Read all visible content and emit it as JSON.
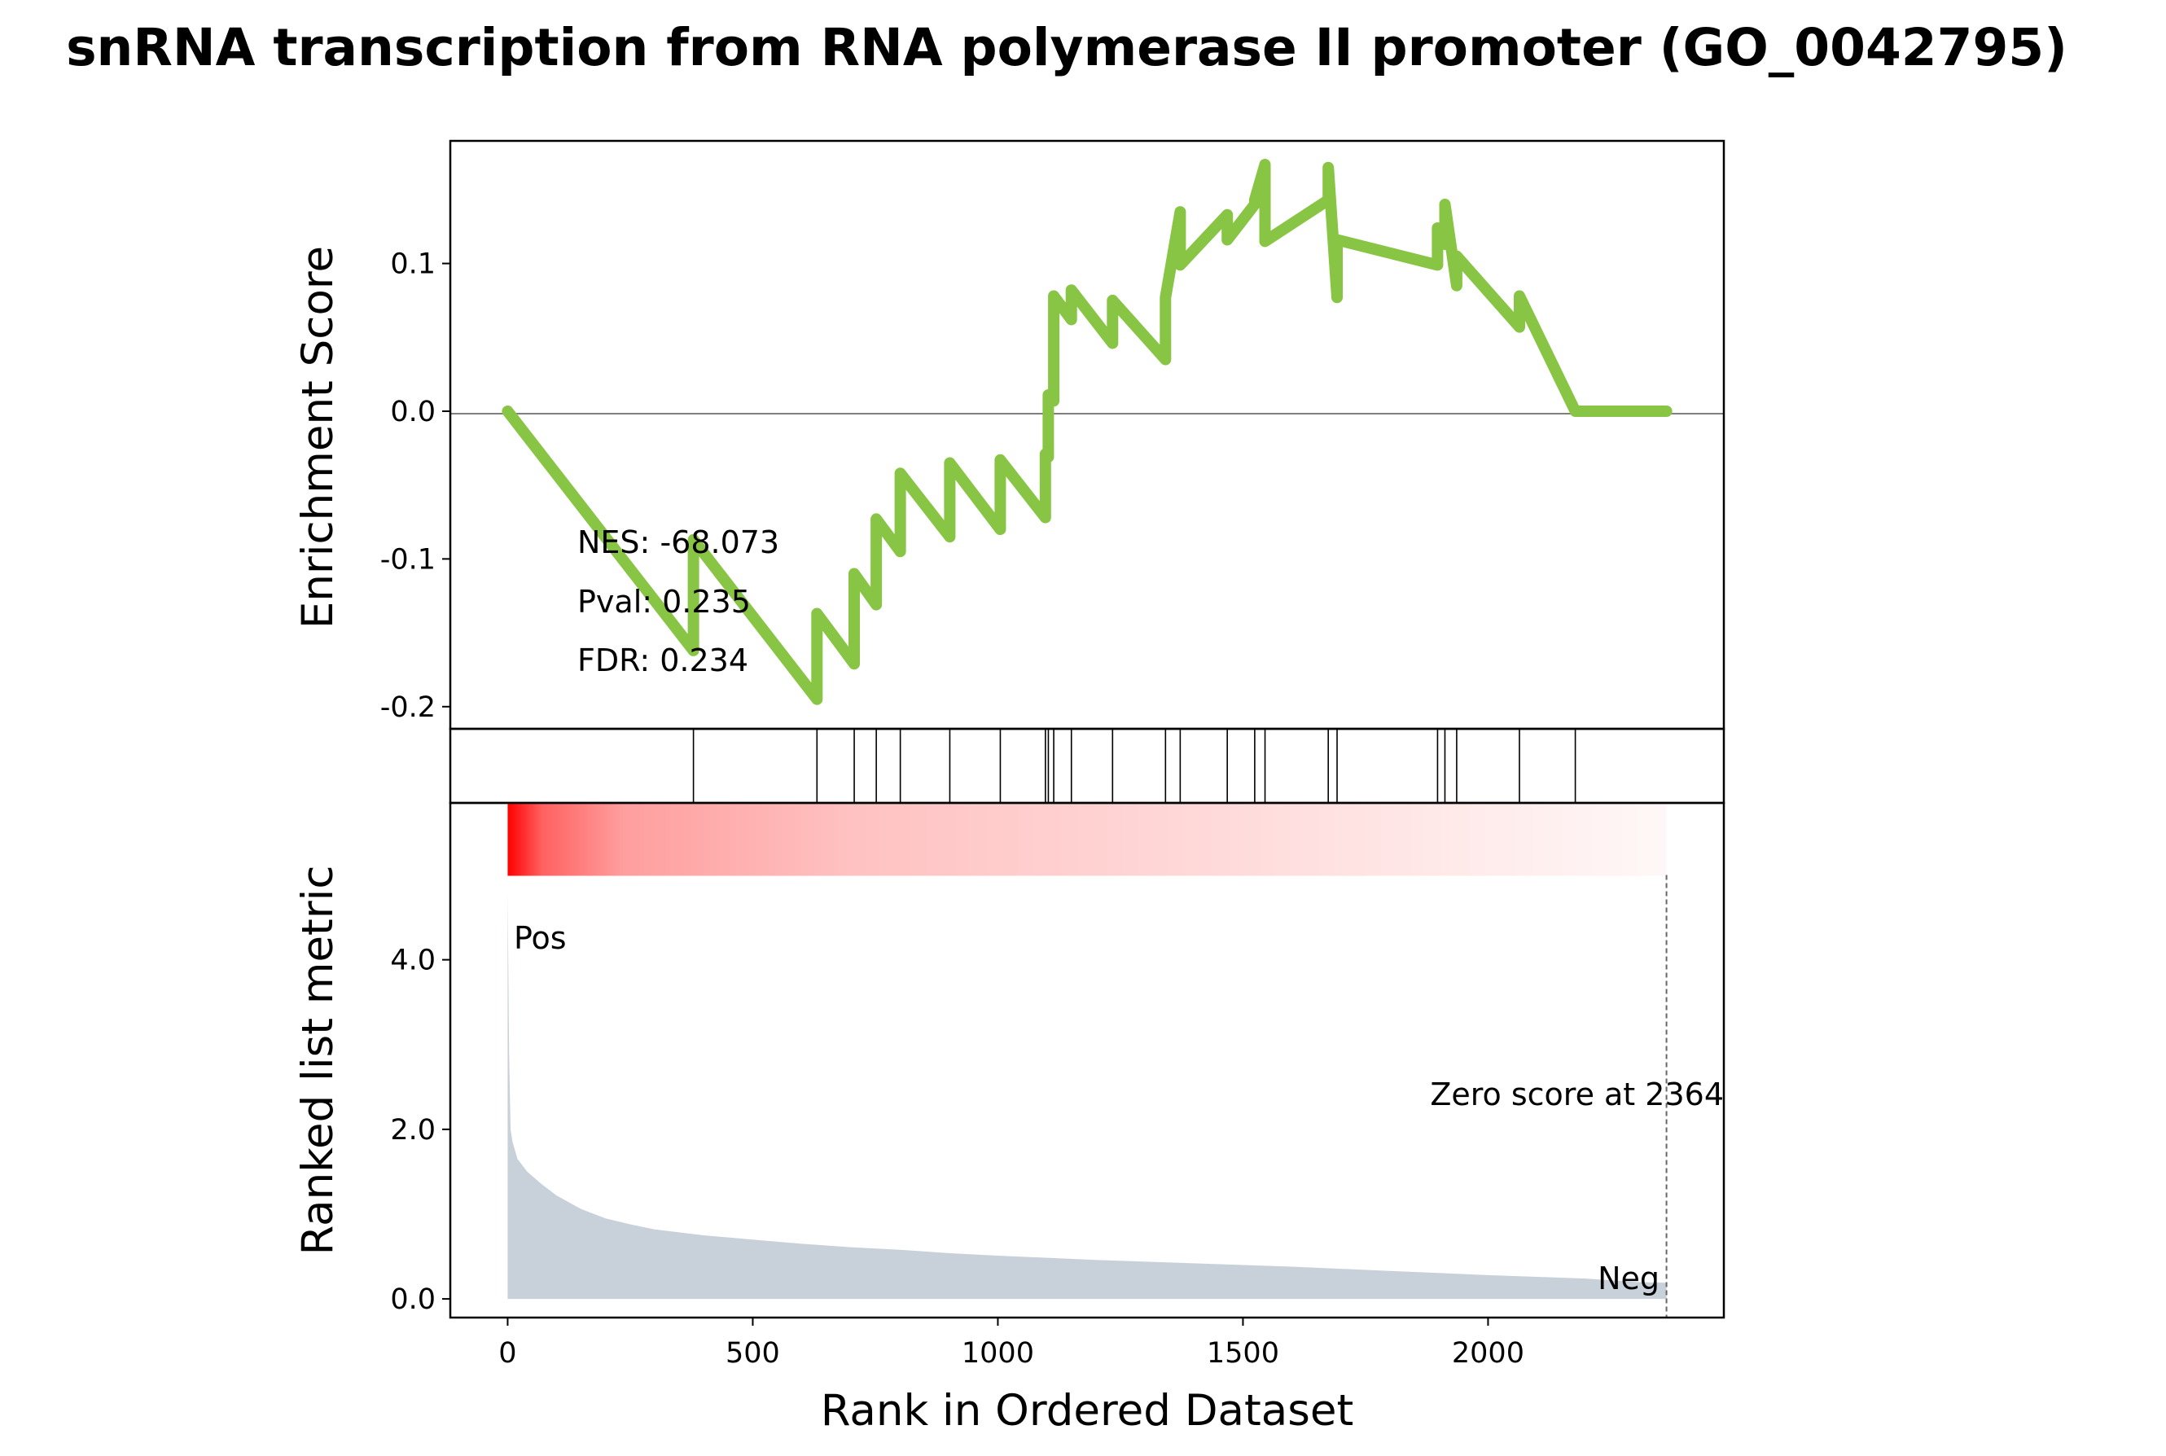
{
  "chart_data": {
    "type": "line",
    "title": "snRNA transcription from RNA polymerase II promoter (GO_0042795)",
    "es_panel": {
      "ylabel": "Enrichment Score",
      "yticks": [
        0.1,
        0.0,
        -0.1,
        -0.2
      ],
      "ytick_labels": [
        "0.1",
        "0.0",
        "-0.1",
        "-0.2"
      ],
      "ylim": [
        -0.215,
        0.183
      ],
      "line_color": "#88c544",
      "zero_line": true,
      "stats": [
        "NES: -68.073",
        "Pval: 0.235",
        "FDR: 0.234"
      ],
      "running_es": {
        "x": [
          0,
          379,
          379,
          631,
          631,
          707,
          707,
          752,
          752,
          801,
          801,
          902,
          902,
          1005,
          1005,
          1097,
          1097,
          1103,
          1103,
          1114,
          1114,
          1150,
          1150,
          1234,
          1234,
          1342,
          1342,
          1372,
          1372,
          1468,
          1468,
          1524,
          1524,
          1545,
          1545,
          1674,
          1674,
          1692,
          1692,
          1897,
          1897,
          1912,
          1912,
          1936,
          1936,
          2064,
          2064,
          2178,
          2178,
          2364
        ],
        "y": [
          0.0,
          -0.162,
          -0.087,
          -0.195,
          -0.137,
          -0.171,
          -0.11,
          -0.131,
          -0.073,
          -0.095,
          -0.042,
          -0.085,
          -0.035,
          -0.08,
          -0.033,
          -0.072,
          -0.029,
          -0.031,
          0.011,
          0.007,
          0.078,
          0.062,
          0.082,
          0.046,
          0.075,
          0.035,
          0.077,
          0.135,
          0.099,
          0.133,
          0.116,
          0.14,
          0.143,
          0.167,
          0.115,
          0.143,
          0.165,
          0.077,
          0.116,
          0.099,
          0.124,
          0.113,
          0.14,
          0.085,
          0.105,
          0.057,
          0.078,
          0.0,
          0.0,
          0.0
        ]
      }
    },
    "hits": [
      379,
      631,
      707,
      752,
      801,
      902,
      1005,
      1097,
      1103,
      1114,
      1150,
      1234,
      1342,
      1372,
      1468,
      1524,
      1545,
      1674,
      1692,
      1897,
      1912,
      1936,
      2064,
      2178
    ],
    "metric_panel": {
      "ylabel": "Ranked list metric",
      "yticks": [
        0.0,
        2.0,
        4.0
      ],
      "ytick_labels": [
        "0.0",
        "2.0",
        "4.0"
      ],
      "ylim": [
        -0.22,
        5.85
      ],
      "fill_color": "#c8d1da",
      "heatmap_color": "#ff0000",
      "pos_label": "Pos",
      "neg_label": "Neg",
      "pos_color": "#ff0000",
      "neg_color": "#0000ff",
      "zero_score_text": "Zero score at 2364",
      "zero_score_rank": 2364,
      "metric": {
        "x": [
          0,
          3,
          6,
          10,
          20,
          40,
          70,
          100,
          150,
          200,
          250,
          300,
          400,
          500,
          600,
          700,
          800,
          900,
          1000,
          1200,
          1400,
          1600,
          1800,
          2000,
          2100,
          2200,
          2300,
          2364
        ],
        "y": [
          4.8,
          2.9,
          2.0,
          1.85,
          1.65,
          1.5,
          1.35,
          1.22,
          1.06,
          0.95,
          0.88,
          0.82,
          0.75,
          0.7,
          0.65,
          0.61,
          0.58,
          0.54,
          0.51,
          0.46,
          0.42,
          0.38,
          0.33,
          0.28,
          0.26,
          0.24,
          0.2,
          0.19
        ]
      }
    },
    "xaxis": {
      "xlabel": "Rank in Ordered Dataset",
      "xticks": [
        0,
        500,
        1000,
        1500,
        2000
      ],
      "xtick_labels": [
        "0",
        "500",
        "1000",
        "1500",
        "2000"
      ],
      "xlim": [
        -117,
        2481
      ]
    }
  }
}
